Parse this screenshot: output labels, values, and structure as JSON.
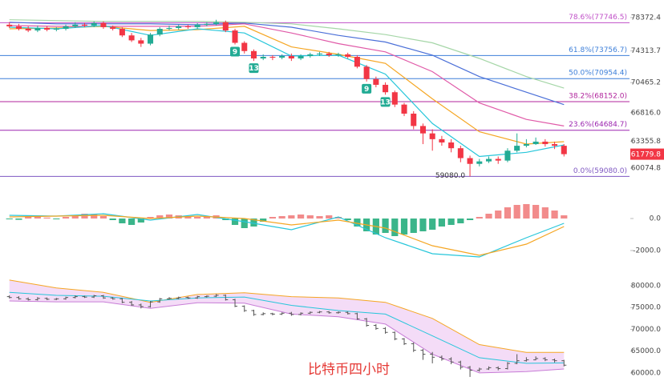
{
  "chart_data": [
    {
      "type": "candlestick",
      "x": [
        0,
        1,
        2,
        3,
        4,
        5,
        6,
        7,
        8,
        9,
        10,
        11,
        12,
        13,
        14,
        15,
        16,
        17,
        18,
        19,
        20,
        21,
        22,
        23,
        24,
        25,
        26,
        27,
        28,
        29,
        30,
        31,
        32,
        33,
        34,
        35,
        36,
        37,
        38,
        39,
        40,
        41,
        42,
        43,
        44,
        45,
        46,
        47,
        48,
        49,
        50,
        51,
        52,
        53,
        54,
        55,
        56,
        57,
        58,
        59
      ],
      "open": [
        77500,
        77300,
        77000,
        76800,
        77100,
        76900,
        77000,
        77300,
        77500,
        77400,
        77700,
        77200,
        77000,
        76200,
        75600,
        75200,
        76300,
        77000,
        77100,
        77300,
        77200,
        77500,
        77600,
        77800,
        76800,
        75300,
        74300,
        73400,
        73600,
        73500,
        73700,
        73400,
        73700,
        73900,
        74000,
        73800,
        73900,
        73600,
        72400,
        70900,
        70200,
        69300,
        67800,
        66700,
        65200,
        64300,
        63600,
        63200,
        62500,
        61300,
        60600,
        60900,
        61200,
        61000,
        62200,
        62800,
        63000,
        63300,
        63000,
        62800
      ],
      "high": [
        77800,
        77600,
        77300,
        77400,
        77300,
        77200,
        77500,
        77800,
        77700,
        77900,
        77900,
        77400,
        77200,
        76500,
        75900,
        76500,
        77200,
        77400,
        77500,
        77500,
        77700,
        77800,
        78100,
        78000,
        77000,
        75500,
        74500,
        73900,
        73800,
        73900,
        74000,
        73900,
        74100,
        74200,
        74200,
        74100,
        74100,
        73800,
        72600,
        71200,
        70500,
        69500,
        68000,
        67000,
        65500,
        64800,
        64000,
        63600,
        62800,
        61600,
        61200,
        61500,
        61500,
        62500,
        64300,
        63600,
        63800,
        63600,
        63300,
        63000
      ],
      "low": [
        77100,
        76800,
        76600,
        76600,
        76700,
        76700,
        76800,
        77100,
        77200,
        77200,
        77000,
        76800,
        76000,
        75400,
        74800,
        75000,
        76100,
        76800,
        76900,
        77000,
        77000,
        77300,
        77400,
        76600,
        75100,
        74000,
        73100,
        73200,
        73200,
        73300,
        73100,
        73200,
        73500,
        73700,
        73600,
        73600,
        73400,
        72200,
        70600,
        69900,
        69000,
        67500,
        66400,
        64800,
        63000,
        62200,
        62800,
        62000,
        60800,
        59080,
        60300,
        60700,
        60600,
        60800,
        62000,
        62600,
        62900,
        62700,
        62400,
        61500
      ],
      "close": [
        77300,
        77000,
        76800,
        77100,
        76900,
        77000,
        77300,
        77500,
        77400,
        77700,
        77200,
        77000,
        76200,
        75600,
        75200,
        76300,
        77000,
        77100,
        77300,
        77200,
        77500,
        77600,
        77800,
        76800,
        75300,
        74300,
        73400,
        73600,
        73500,
        73700,
        73400,
        73700,
        73900,
        74000,
        73800,
        73900,
        73600,
        72400,
        70900,
        70200,
        69300,
        67800,
        66700,
        65200,
        64300,
        63600,
        63200,
        62500,
        61300,
        60600,
        60900,
        61200,
        61000,
        62200,
        62800,
        63000,
        63300,
        63000,
        62800,
        61779.8
      ],
      "up_color": "#22ab94",
      "down_color": "#f23645",
      "badge_color": "#f23645",
      "xlim": [
        -1,
        60
      ],
      "ylim": [
        56200,
        80500
      ],
      "yticks": [
        78372.4,
        74313.7,
        70465.2,
        {
          "value": 66816,
          "label": "66816.0"
        },
        63355.8,
        60074.8
      ],
      "fib_levels": [
        {
          "value": 77746.5,
          "label": "78.6%(77746.5)",
          "color": "#c050c8"
        },
        {
          "value": 73756.7,
          "label": "61.8%(73756.7)",
          "color": "#3d7fd9"
        },
        {
          "value": 70954.4,
          "label": "50.0%(70954.4)",
          "color": "#3d7fd9"
        },
        {
          "value": 68152,
          "label": "38.2%(68152.0)",
          "color": "#b0249c"
        },
        {
          "value": 64684.7,
          "label": "23.6%(64684.7)",
          "color": "#9c27b0"
        },
        {
          "value": 59080,
          "label": "0.0%(59080.0)",
          "color": "#7e57c2"
        }
      ],
      "lines": [
        {
          "color": "#a5d6a7",
          "x": [
            0,
            5,
            10,
            15,
            20,
            25,
            30,
            35,
            40,
            45,
            50,
            55,
            59
          ],
          "values": [
            78100,
            78000,
            77900,
            77900,
            77900,
            77800,
            77600,
            77000,
            76300,
            75300,
            73400,
            71200,
            69800
          ]
        },
        {
          "color": "#4a6fd8",
          "x": [
            0,
            5,
            10,
            15,
            20,
            25,
            30,
            35,
            40,
            45,
            50,
            55,
            59
          ],
          "values": [
            77800,
            77600,
            77600,
            77600,
            77500,
            77700,
            77200,
            76200,
            75400,
            73800,
            71200,
            69300,
            67800
          ]
        },
        {
          "color": "#e05aa8",
          "x": [
            0,
            5,
            10,
            15,
            20,
            25,
            30,
            35,
            40,
            45,
            50,
            55,
            59
          ],
          "values": [
            77400,
            77300,
            77300,
            77300,
            77300,
            77600,
            76500,
            75200,
            74200,
            71800,
            68000,
            66000,
            65200
          ]
        },
        {
          "color": "#f5a623",
          "x": [
            0,
            5,
            10,
            15,
            20,
            25,
            30,
            35,
            40,
            45,
            50,
            55,
            59
          ],
          "values": [
            77000,
            77100,
            77300,
            76800,
            76900,
            77300,
            74800,
            73900,
            72800,
            68500,
            64500,
            63000,
            63300
          ]
        },
        {
          "color": "#26c6da",
          "x": [
            0,
            5,
            10,
            15,
            20,
            25,
            30,
            35,
            40,
            45,
            50,
            55,
            59
          ],
          "values": [
            77200,
            77000,
            77400,
            76200,
            77000,
            76500,
            73700,
            73800,
            71500,
            65500,
            61500,
            62000,
            62900
          ]
        }
      ],
      "sequence_marks": [
        {
          "label": "9",
          "x": 24
        },
        {
          "label": "13",
          "x": 26
        },
        {
          "label": "9",
          "x": 38
        },
        {
          "label": "13",
          "x": 40
        }
      ],
      "low_label": {
        "label": "59080.0",
        "x": 49
      }
    },
    {
      "type": "macd",
      "histogram": [
        -50,
        -80,
        100,
        120,
        60,
        -50,
        100,
        200,
        300,
        250,
        150,
        -100,
        -300,
        -400,
        -250,
        100,
        200,
        250,
        200,
        150,
        100,
        150,
        200,
        -100,
        -400,
        -600,
        -500,
        -200,
        100,
        150,
        200,
        250,
        200,
        150,
        200,
        100,
        -100,
        -500,
        -800,
        -1000,
        -900,
        -1100,
        -1000,
        -900,
        -800,
        -700,
        -500,
        -400,
        -300,
        -100,
        100,
        300,
        500,
        700,
        850,
        900,
        850,
        700,
        500,
        200
      ],
      "up_color": "#f28b8b",
      "down_color": "#3bb58a",
      "ylim": [
        -2850,
        900
      ],
      "yticks": [
        {
          "value": 0,
          "label": "0.0"
        },
        {
          "value": -2000,
          "label": "-2000.0"
        }
      ],
      "lines": [
        {
          "color": "#26c6da",
          "x": [
            0,
            5,
            10,
            15,
            20,
            25,
            30,
            35,
            40,
            45,
            50,
            55,
            59
          ],
          "values": [
            200,
            150,
            300,
            -100,
            250,
            -200,
            -700,
            100,
            -1200,
            -2200,
            -2400,
            -1200,
            -300
          ]
        },
        {
          "color": "#f5a623",
          "x": [
            0,
            5,
            10,
            15,
            20,
            25,
            30,
            35,
            40,
            45,
            50,
            55,
            59
          ],
          "values": [
            100,
            150,
            200,
            0,
            150,
            0,
            -400,
            -100,
            -600,
            -1700,
            -2300,
            -1600,
            -500
          ]
        }
      ]
    },
    {
      "type": "bollinger",
      "ylim": [
        58150,
        82200
      ],
      "yticks": [
        {
          "value": 80000,
          "label": "80000.0"
        },
        {
          "value": 75000,
          "label": "75000.0"
        },
        {
          "value": 70000,
          "label": "70000.0"
        },
        {
          "value": 65000,
          "label": "65000.0"
        },
        {
          "value": 60000,
          "label": "60000.0"
        }
      ],
      "candle_color": "#555555",
      "fill_color": "#f4dcf7",
      "bands": {
        "x": [
          0,
          5,
          10,
          15,
          20,
          25,
          30,
          35,
          40,
          45,
          50,
          55,
          59
        ],
        "upper": [
          81300,
          79500,
          78500,
          76200,
          78000,
          78400,
          77500,
          77200,
          76200,
          72500,
          66500,
          64700,
          64700
        ],
        "middle": [
          78500,
          77800,
          77600,
          76500,
          77200,
          77400,
          75500,
          74300,
          73500,
          68500,
          63500,
          62200,
          62300
        ],
        "lower": [
          76500,
          76300,
          76300,
          74800,
          76100,
          76000,
          73500,
          72900,
          71200,
          64300,
          60000,
          60300,
          60900
        ],
        "upper_color": "#f5a623",
        "middle_color": "#26c6da",
        "lower_color": "#c77dd6"
      }
    }
  ],
  "caption": "比特币四小时"
}
